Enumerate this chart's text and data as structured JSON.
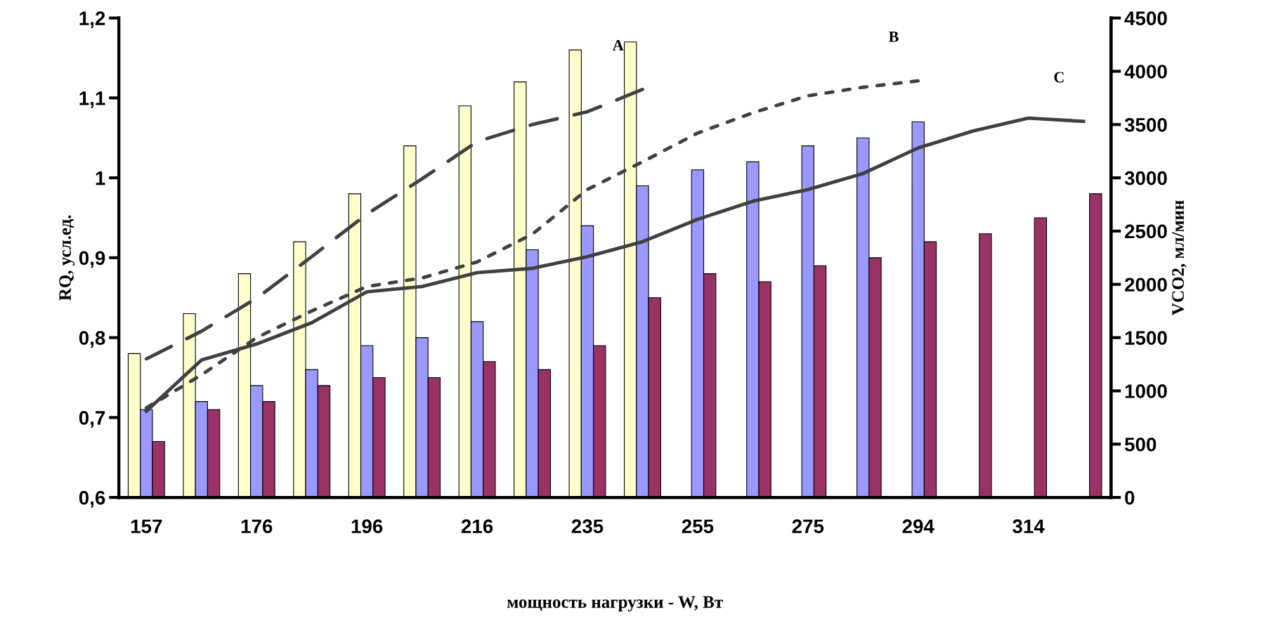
{
  "chart_data": {
    "type": "bar",
    "xlabel": "мощность нагрузки - W, Вт",
    "ylabel": "RQ, усл.ед.",
    "y2label": "VCO2, мл/мин",
    "categories": [
      "157",
      null,
      "176",
      null,
      "196",
      null,
      "216",
      null,
      "235",
      null,
      "255",
      null,
      "275",
      null,
      "294",
      null,
      "314",
      null
    ],
    "ylim": [
      0.6,
      1.2
    ],
    "yticks": [
      {
        "value": 0.6,
        "label": "0,6"
      },
      {
        "value": 0.7,
        "label": "0,7"
      },
      {
        "value": 0.8,
        "label": "0,8"
      },
      {
        "value": 0.9,
        "label": "0,9"
      },
      {
        "value": 1.0,
        "label": "1"
      },
      {
        "value": 1.1,
        "label": "1,1"
      },
      {
        "value": 1.2,
        "label": "1,2"
      }
    ],
    "y2lim": [
      0,
      4500
    ],
    "y2ticks": [
      0,
      500,
      1000,
      1500,
      2000,
      2500,
      3000,
      3500,
      4000,
      4500
    ],
    "grid": false,
    "legend": false,
    "series": [
      {
        "color": "#ffffcc",
        "values": [
          0.78,
          0.83,
          0.88,
          0.92,
          0.98,
          1.04,
          1.09,
          1.12,
          1.16,
          1.17,
          null,
          null,
          null,
          null,
          null,
          null,
          null,
          null
        ]
      },
      {
        "color": "#9999ff",
        "values": [
          0.71,
          0.72,
          0.74,
          0.76,
          0.79,
          0.8,
          0.82,
          0.91,
          0.94,
          0.99,
          1.01,
          1.02,
          1.04,
          1.05,
          1.07,
          null,
          null,
          null
        ]
      },
      {
        "color": "#993366",
        "values": [
          0.67,
          0.71,
          0.72,
          0.74,
          0.75,
          0.75,
          0.77,
          0.76,
          0.79,
          0.85,
          0.88,
          0.87,
          0.89,
          0.9,
          0.92,
          0.93,
          0.95,
          0.98
        ]
      },
      {
        "type": "line",
        "name": "A",
        "axis": "y2",
        "color": "#404040",
        "line_style": "dashed",
        "values": [
          1300,
          1560,
          1870,
          2260,
          2660,
          2990,
          3340,
          3500,
          3620,
          3830,
          null,
          null,
          null,
          null,
          null,
          null,
          null,
          null
        ]
      },
      {
        "type": "line",
        "name": "B",
        "axis": "y2",
        "color": "#404040",
        "line_style": "dotted",
        "values": [
          840,
          1150,
          1500,
          1750,
          1980,
          2060,
          2210,
          2470,
          2890,
          3150,
          3420,
          3610,
          3770,
          3850,
          3910,
          null,
          null,
          null
        ]
      },
      {
        "type": "line",
        "name": "C",
        "axis": "y2",
        "color": "#404040",
        "line_style": "solid",
        "values": [
          810,
          1290,
          1440,
          1640,
          1930,
          1980,
          2110,
          2150,
          2260,
          2400,
          2610,
          2780,
          2890,
          3040,
          3280,
          3440,
          3560,
          3530
        ]
      }
    ]
  }
}
